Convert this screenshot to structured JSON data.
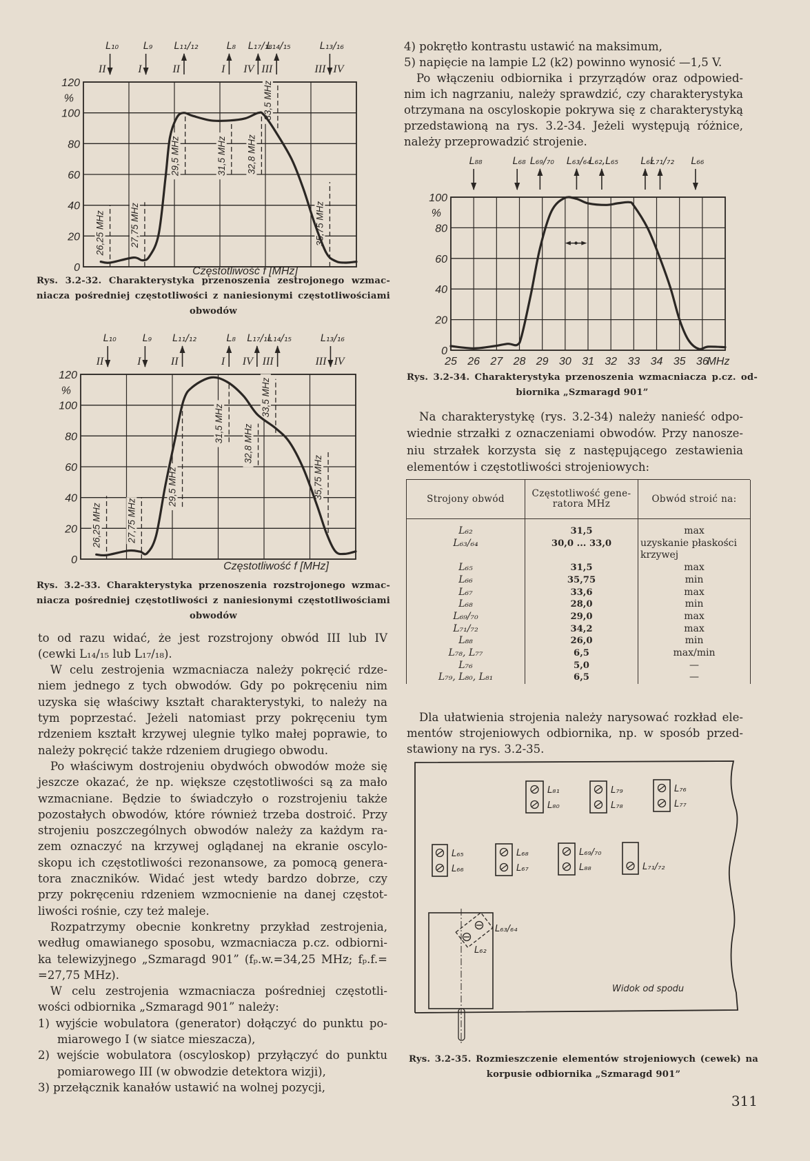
{
  "page_number": "311",
  "colors": {
    "paper": "#e7ded1",
    "ink": "#2b2724"
  },
  "left_text": [
    {
      "type": "cont",
      "lines": [
        "to od razu widać, że jest rozstrojony obwód III lub IV",
        "(cewki L₁₄/₁₅ lub L₁₇/₁₈)."
      ]
    },
    {
      "type": "para",
      "lines": [
        "W celu zestrojenia wzmacniacza należy pokręcić rdze-",
        "niem jednego z tych obwodów. Gdy po pokręceniu nim",
        "uzyska się właściwy kształt charakterystyki, to należy na",
        "tym poprzestać. Jeżeli natomiast przy pokręceniu tym",
        "rdzeniem kształt krzywej ulegnie tylko małej poprawie, to",
        "należy pokręcić także rdzeniem drugiego obwodu."
      ]
    },
    {
      "type": "para",
      "lines": [
        "Po właściwym dostrojeniu obydwóch obwodów może się",
        "jeszcze okazać, że np. większe częstotliwości są za mało",
        "wzmacniane. Będzie to świadczyło o rozstrojeniu także",
        "pozostałych obwodów, które również trzeba dostroić. Przy",
        "strojeniu poszczególnych obwodów należy za każdym ra-",
        "zem oznaczyć na krzywej oglądanej na ekranie oscylo-",
        "skopu ich częstotliwości rezonansowe, za pomocą genera-",
        "tora znaczników. Widać jest wtedy bardzo dobrze, czy",
        "przy pokręceniu rdzeniem wzmocnienie na danej częstot-",
        "liwości rośnie, czy też maleje."
      ]
    },
    {
      "type": "para",
      "lines": [
        "Rozpatrzymy obecnie konkretny przykład zestrojenia,",
        "według omawianego sposobu, wzmacniacza p.cz. odbiorni-",
        "ka telewizyjnego „Szmaragd 901” (fₚ.w.=34,25 MHz; fₚ.f.=",
        "=27,75 MHz)."
      ]
    },
    {
      "type": "para",
      "lines": [
        "W celu zestrojenia wzmacniacza pośredniej częstotli-",
        "wości odbiornika „Szmaragd 901” należy:"
      ]
    },
    {
      "type": "item",
      "lines": [
        "1) wyjście wobulatora (generator) dołączyć do punktu po-",
        "miarowego I (w siatce mieszacza),"
      ]
    },
    {
      "type": "item",
      "lines": [
        "2) wejście wobulatora (oscyloskop) przyłączyć do punktu",
        "pomiarowego III (w obwodzie detektora wizji),"
      ]
    },
    {
      "type": "item",
      "lines": [
        "3) przełącznik kanałów ustawić na wolnej pozycji,"
      ]
    }
  ],
  "right_top_text": [
    {
      "type": "item",
      "lines": [
        "4) pokrętło kontrastu ustawić na maksimum,"
      ]
    },
    {
      "type": "item",
      "lines": [
        "5) napięcie na lampie L2 (k2) powinno wynosić —1,5 V."
      ]
    },
    {
      "type": "para",
      "lines": [
        "Po włączeniu odbiornika i przyrządów oraz odpowied-",
        "nim ich nagrzaniu, należy sprawdzić, czy charakterystyka",
        "otrzymana na oscyloskopie pokrywa się z charakterystyką",
        "przedstawioną na rys. 3.2-34. Jeżeli występują różnice,",
        "należy przeprowadzić strojenie."
      ]
    }
  ],
  "right_mid_text": [
    {
      "type": "para",
      "lines": [
        "Na charakterystykę (rys. 3.2-34) należy nanieść odpo-",
        "wiednie strzałki z oznaczeniami obwodów. Przy nanosze-",
        "niu strzałek korzysta się z następującego zestawienia",
        "elementów i częstotliwości strojeniowych:"
      ]
    }
  ],
  "right_bottom_text": [
    {
      "type": "para",
      "lines": [
        "Dla ułatwienia strojenia należy narysować rozkład ele-",
        "mentów strojeniowych odbiornika, np. w sposób przed-",
        "stawiony na rys. 3.2-35."
      ]
    }
  ],
  "table": {
    "headers": [
      "Strojony obwód",
      "Częstotliwość gene-ratora MHz",
      "Obwód stroić na:"
    ],
    "rows": [
      [
        "L₆₂",
        "31,5",
        "max"
      ],
      [
        "L₆₃/₆₄",
        "30,0 ... 33,0",
        "uzyskanie płaskości krzywej"
      ],
      [
        "L₆₅",
        "31,5",
        "max"
      ],
      [
        "L₆₆",
        "35,75",
        "min"
      ],
      [
        "L₆₇",
        "33,6",
        "max"
      ],
      [
        "L₆₈",
        "28,0",
        "min"
      ],
      [
        "L₆₉/₇₀",
        "29,0",
        "max"
      ],
      [
        "L₇₁/₇₂",
        "34,2",
        "max"
      ],
      [
        "L₈₈",
        "26,0",
        "min"
      ],
      [
        "L₇₈, L₇₇",
        "6,5",
        "max/min"
      ],
      [
        "L₇₆",
        "5,0",
        "—"
      ],
      [
        "L₇₉, L₈₀, L₈₁",
        "6,5",
        "—"
      ]
    ]
  },
  "captions": {
    "fig32": [
      "Rys. 3.2-32. Charakterystyka przenoszenia zestrojonego wzmac-",
      "niacza pośredniej częstotliwości z naniesionymi częstotliwościami",
      "obwodów"
    ],
    "fig33": [
      "Rys. 3.2-33. Charakterystyka przenoszenia rozstrojonego wzmac-",
      "niacza pośredniej częstotliwości z naniesionymi częstotliwościami",
      "obwodów"
    ],
    "fig34": [
      "Rys. 3.2-34. Charakterystyka przenoszenia wzmacniacza p.cz. od-",
      "biornika „Szmaragd 901”"
    ],
    "fig35": [
      "Rys. 3.2-35. Rozmieszczenie elementów strojeniowych (cewek) na",
      "korpusie odbiornika „Szmaragd 901”"
    ]
  },
  "chart_data": [
    {
      "id": "fig32",
      "type": "line",
      "xlabel": "Częstotliwość f [MHz]",
      "ylabel": "%",
      "xlim": [
        25.1,
        36.9
      ],
      "ylim": [
        0,
        120
      ],
      "y_ticks": [
        0,
        20,
        40,
        60,
        80,
        100,
        120
      ],
      "ylabel_at": 110,
      "grid": true,
      "grid_columns": 6,
      "series": [
        {
          "x": [
            25.85,
            26.25,
            27.26,
            27.65,
            27.95,
            28.35,
            28.65,
            28.84,
            29.14,
            29.44,
            29.83,
            30.63,
            31.42,
            32.1,
            32.66,
            32.9,
            33.4,
            34.1,
            34.6,
            35.1,
            35.6,
            36.0,
            36.4,
            36.9
          ],
          "y": [
            3.3,
            2.7,
            6,
            4.2,
            6.7,
            21,
            58,
            84,
            97,
            100,
            98,
            95,
            95,
            96.4,
            100,
            98.7,
            88,
            70,
            51,
            28,
            9,
            3.7,
            2.7,
            3.3
          ]
        }
      ],
      "markers": [
        {
          "label": "26,25 MHz",
          "x": 26.25,
          "from": 0,
          "to": 40,
          "label_at": 22
        },
        {
          "label": "27,75 MHz",
          "x": 27.75,
          "from": 0,
          "to": 42,
          "label_at": 27
        },
        {
          "label": "29,5 MHz",
          "x": 29.5,
          "from": 60,
          "to": 100,
          "label_at": 72
        },
        {
          "label": "31,5 MHz",
          "x": 31.5,
          "from": 60,
          "to": 95,
          "label_at": 72
        },
        {
          "label": "32,8 MHz",
          "x": 32.8,
          "from": 60,
          "to": 100,
          "label_at": 73
        },
        {
          "label": "33,5 MHz",
          "x": 33.5,
          "from": 90,
          "to": 120,
          "label_at": 108
        },
        {
          "label": "35,75 MHz",
          "x": 35.75,
          "from": 0,
          "to": 55,
          "label_at": 28
        }
      ],
      "arrows": [
        {
          "label": "L₁₀",
          "x": 26.25,
          "dir": "down",
          "circuit": "II"
        },
        {
          "label": "L₉",
          "x": 27.8,
          "dir": "down",
          "circuit": "I"
        },
        {
          "label": "L₁₁/₁₂",
          "x": 29.45,
          "dir": "up",
          "circuit": "II"
        },
        {
          "label": "L₈",
          "x": 31.4,
          "dir": "up",
          "circuit": "I"
        },
        {
          "label": "L₁₇/₁₈",
          "x": 32.65,
          "dir": "up",
          "circuit": "IV"
        },
        {
          "label": "L₁₄/₁₅",
          "x": 33.45,
          "dir": "up",
          "circuit": "III"
        },
        {
          "label": "L₁₃/₁₆",
          "x": 35.75,
          "dir": "down",
          "circuit": "III",
          "circuit_right": "IV"
        }
      ]
    },
    {
      "id": "fig33",
      "type": "line",
      "xlabel": "Częstotliwość f [MHz]",
      "ylabel": "%",
      "xlim": [
        25.14,
        36.93
      ],
      "ylim": [
        0,
        120
      ],
      "y_ticks": [
        0,
        20,
        40,
        60,
        80,
        100,
        120
      ],
      "ylabel_at": 110,
      "grid": true,
      "grid_columns": 6,
      "series": [
        {
          "x": [
            25.81,
            26.25,
            27.19,
            27.68,
            27.98,
            28.37,
            28.76,
            29.16,
            29.55,
            29.95,
            30.74,
            31.43,
            32.12,
            32.71,
            33.5,
            34.09,
            34.68,
            35.27,
            35.67,
            36.06,
            36.46,
            36.93
          ],
          "y": [
            3,
            2.6,
            5.5,
            4.9,
            3.7,
            15,
            47,
            76,
            103,
            112,
            118,
            115,
            106,
            94,
            85,
            76,
            59,
            35,
            17,
            5,
            3.4,
            5
          ]
        }
      ],
      "markers": [
        {
          "label": "26,25 MHz",
          "x": 26.25,
          "from": 0,
          "to": 41,
          "label_at": 22
        },
        {
          "label": "27,75 MHz",
          "x": 27.75,
          "from": 0,
          "to": 40,
          "label_at": 25
        },
        {
          "label": "29,5 MHz",
          "x": 29.5,
          "from": 34,
          "to": 103,
          "label_at": 47
        },
        {
          "label": "31,5 MHz",
          "x": 31.5,
          "from": 76,
          "to": 115,
          "label_at": 88
        },
        {
          "label": "32,8 MHz",
          "x": 32.75,
          "from": 61,
          "to": 88,
          "label_at": 75
        },
        {
          "label": "33,5 MHz",
          "x": 33.5,
          "from": 82,
          "to": 117,
          "label_at": 105
        },
        {
          "label": "35,75 MHz",
          "x": 35.75,
          "from": 17,
          "to": 70,
          "label_at": 53
        }
      ],
      "arrows": [
        {
          "label": "L₁₀",
          "x": 26.3,
          "dir": "down",
          "circuit": "II"
        },
        {
          "label": "L₉",
          "x": 27.9,
          "dir": "down",
          "circuit": "I"
        },
        {
          "label": "L₁₁/₁₂",
          "x": 29.5,
          "dir": "up",
          "circuit": "II"
        },
        {
          "label": "L₈",
          "x": 31.5,
          "dir": "up",
          "circuit": "I"
        },
        {
          "label": "L₁₇/₁₈",
          "x": 32.7,
          "dir": "up",
          "circuit": "IV"
        },
        {
          "label": "L₁₄/₁₅",
          "x": 33.58,
          "dir": "up",
          "circuit": "III"
        },
        {
          "label": "L₁₃/₁₆",
          "x": 35.85,
          "dir": "down",
          "circuit": "III",
          "circuit_right": "IV"
        }
      ]
    },
    {
      "id": "fig34",
      "type": "line",
      "xlabel": "MHz",
      "ylabel": "%",
      "xlim": [
        25,
        37
      ],
      "ylim": [
        0,
        100
      ],
      "y_ticks": [
        0,
        20,
        40,
        60,
        80,
        100
      ],
      "ylabel_at": 90,
      "x_ticks": [
        25,
        26,
        27,
        28,
        29,
        30,
        31,
        32,
        33,
        34,
        35,
        36
      ],
      "grid": true,
      "series": [
        {
          "x": [
            25,
            26.0,
            26.9,
            27.5,
            27.9,
            28.1,
            28.5,
            28.9,
            29.4,
            29.97,
            30.5,
            31.0,
            31.8,
            32.3,
            32.8,
            33.0,
            33.6,
            34.1,
            34.6,
            35.0,
            35.4,
            35.85,
            36.25,
            37.0
          ],
          "y": [
            2.7,
            1.2,
            2.7,
            4.2,
            3.5,
            9.5,
            36.5,
            66.6,
            90.7,
            99.4,
            98.9,
            96,
            94.9,
            96,
            96.7,
            94.5,
            80,
            62,
            41,
            20,
            6.5,
            0.8,
            2.3,
            2
          ]
        }
      ],
      "annotation": {
        "type": "double-arrow",
        "x_from": 30.0,
        "x_to": 30.95,
        "y": 70
      },
      "arrows": [
        {
          "label": "L₈₈",
          "x": 26.0,
          "dir": "down"
        },
        {
          "label": "L₆₈",
          "x": 27.9,
          "dir": "down"
        },
        {
          "label": "L₆₉/₇₀",
          "x": 28.9,
          "dir": "up"
        },
        {
          "label": "L₆₃/₆₄",
          "x": 30.5,
          "dir": "up"
        },
        {
          "label": "L₆₂,L₆₅",
          "x": 31.6,
          "dir": "up"
        },
        {
          "label": "L₆₇",
          "x": 33.5,
          "dir": "up"
        },
        {
          "label": "L₇₁/₇₂",
          "x": 34.15,
          "dir": "up"
        },
        {
          "label": "L₆₆",
          "x": 35.7,
          "dir": "down"
        }
      ]
    }
  ],
  "fig35": {
    "boxes": [
      {
        "top": "L₈₁",
        "bottom": "L₈₀"
      },
      {
        "top": "L₇₉",
        "bottom": "L₇₈"
      },
      {
        "top": "L₇₆",
        "bottom": "L₇₇"
      },
      {
        "top": "L₆₅",
        "bottom": "L₆₆"
      },
      {
        "top": "L₆₈",
        "bottom": "L₆₇"
      },
      {
        "top": "L₆₉/₇₀",
        "bottom": "L₈₈"
      },
      {
        "top": "",
        "bottom": "L₇₁/₇₂"
      }
    ],
    "filter_top": "L₆₃/₆₄",
    "filter_bottom": "L₆₂",
    "view_label": "Widok od spodu"
  }
}
